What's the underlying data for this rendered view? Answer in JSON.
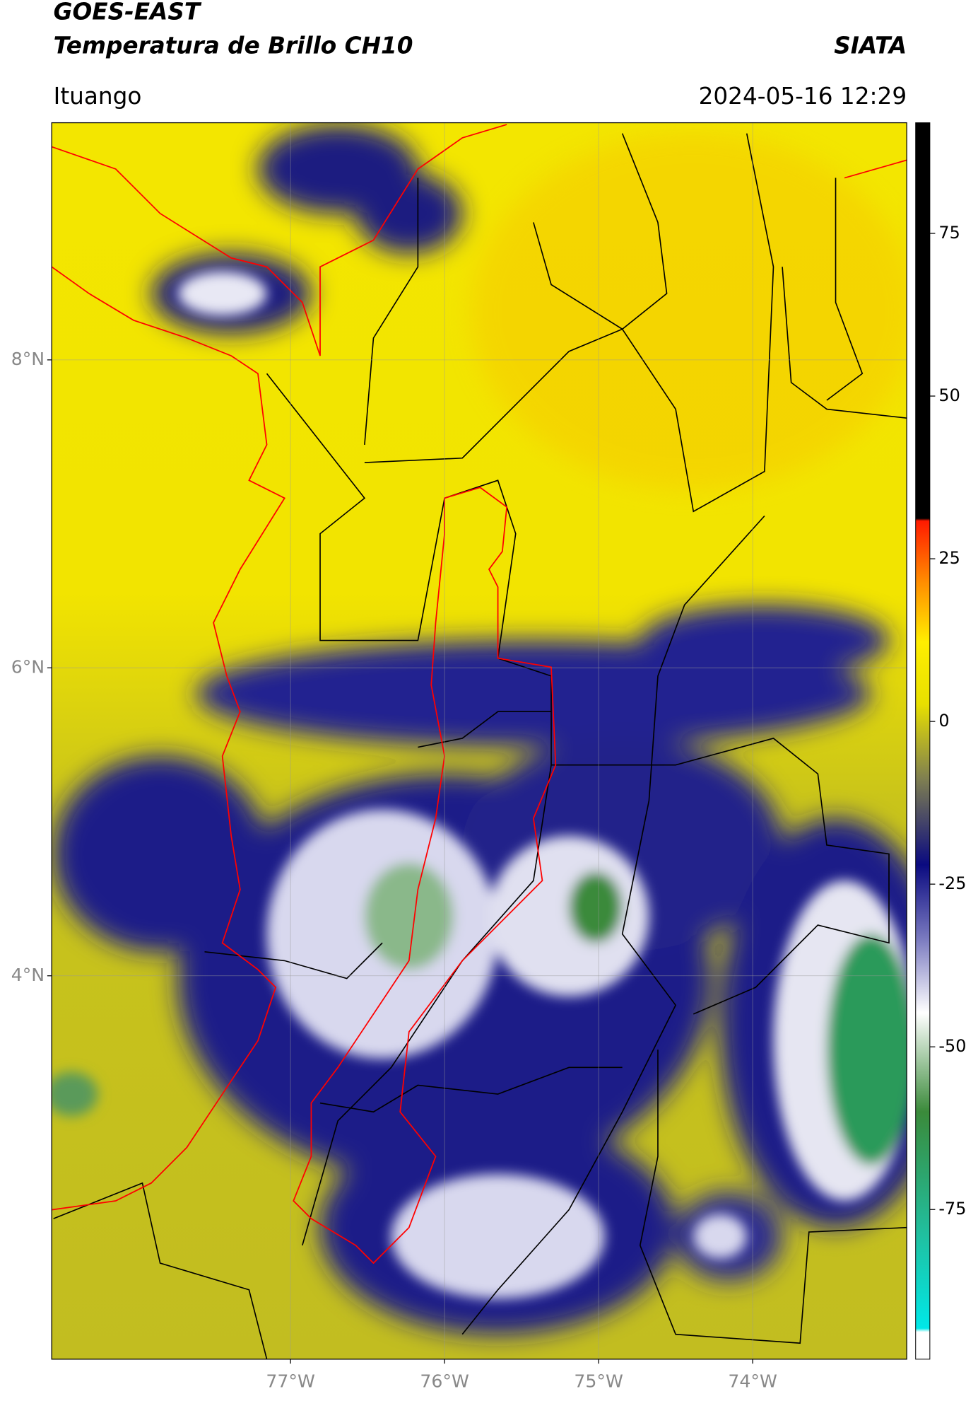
{
  "header": {
    "title": "GOES-EAST",
    "subtitle": "Temperatura de Brillo CH10",
    "source": "SIATA",
    "location": "Ituango",
    "datetime": "2024-05-16 12:29"
  },
  "map": {
    "xlim": [
      -78.55,
      -73.0
    ],
    "ylim": [
      1.51,
      9.54
    ],
    "xticks": [
      {
        "value": -77,
        "label": "77°W"
      },
      {
        "value": -76,
        "label": "76°W"
      },
      {
        "value": -75,
        "label": "75°W"
      },
      {
        "value": -74,
        "label": "74°W"
      }
    ],
    "yticks": [
      {
        "value": 8,
        "label": "8°N"
      },
      {
        "value": 6,
        "label": "6°N"
      },
      {
        "value": 4,
        "label": "4°N"
      }
    ],
    "grid": true
  },
  "colorbar": {
    "lim": [
      -98,
      92
    ],
    "ticks": [
      75,
      50,
      25,
      0,
      -25,
      -50,
      -75
    ]
  }
}
